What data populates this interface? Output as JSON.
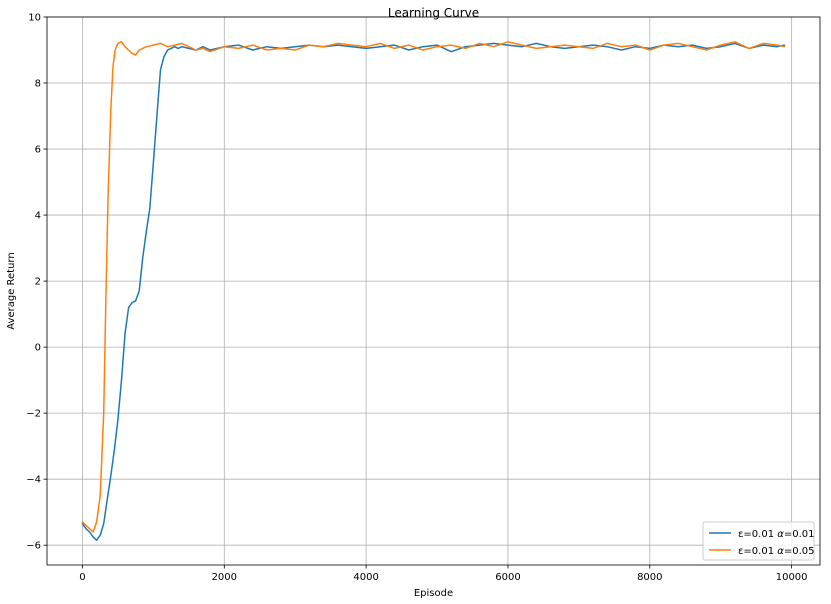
{
  "chart_data": {
    "type": "line",
    "title": "Learning Curve",
    "xlabel": "Episode",
    "ylabel": "Average Return",
    "xlim": [
      -500,
      10400
    ],
    "ylim": [
      -6.6,
      10.0
    ],
    "xticks": [
      0,
      2000,
      4000,
      6000,
      8000,
      10000
    ],
    "xtick_labels": [
      "0",
      "2000",
      "4000",
      "6000",
      "8000",
      "10000"
    ],
    "yticks": [
      -6,
      -4,
      -2,
      0,
      2,
      4,
      6,
      8,
      10
    ],
    "ytick_labels": [
      "−6",
      "−4",
      "−2",
      "0",
      "2",
      "4",
      "6",
      "8",
      "10"
    ],
    "grid": true,
    "legend_position": "lower-right",
    "series": [
      {
        "name": "ε=0.01 α=0.01",
        "legend_label": {
          "pre": "ε=0.01 ",
          "alpha": "α",
          "post": "=0.01"
        },
        "color": "#1f77b4",
        "x": [
          0,
          50,
          100,
          150,
          200,
          250,
          300,
          350,
          400,
          450,
          500,
          550,
          600,
          650,
          700,
          750,
          800,
          850,
          900,
          950,
          1000,
          1050,
          1100,
          1150,
          1200,
          1250,
          1300,
          1350,
          1400,
          1500,
          1600,
          1700,
          1800,
          2000,
          2200,
          2400,
          2600,
          2800,
          3000,
          3200,
          3400,
          3600,
          3800,
          4000,
          4200,
          4400,
          4600,
          4800,
          5000,
          5200,
          5400,
          5600,
          5800,
          6000,
          6200,
          6400,
          6600,
          6800,
          7000,
          7200,
          7400,
          7600,
          7800,
          8000,
          8200,
          8400,
          8600,
          8800,
          9000,
          9200,
          9400,
          9600,
          9800,
          9900
        ],
        "y": [
          -5.35,
          -5.5,
          -5.6,
          -5.75,
          -5.85,
          -5.7,
          -5.35,
          -4.6,
          -3.9,
          -3.1,
          -2.2,
          -1.0,
          0.4,
          1.2,
          1.35,
          1.4,
          1.7,
          2.7,
          3.5,
          4.2,
          5.6,
          7.0,
          8.4,
          8.8,
          9.0,
          9.05,
          9.1,
          9.05,
          9.1,
          9.05,
          9.0,
          9.1,
          9.0,
          9.1,
          9.15,
          9.0,
          9.1,
          9.05,
          9.1,
          9.15,
          9.1,
          9.15,
          9.1,
          9.05,
          9.1,
          9.15,
          9.0,
          9.1,
          9.15,
          8.95,
          9.1,
          9.15,
          9.2,
          9.15,
          9.1,
          9.2,
          9.1,
          9.05,
          9.1,
          9.15,
          9.1,
          9.0,
          9.1,
          9.05,
          9.15,
          9.1,
          9.15,
          9.05,
          9.1,
          9.2,
          9.05,
          9.15,
          9.1,
          9.15
        ]
      },
      {
        "name": "ε=0.01 α=0.05",
        "legend_label": {
          "pre": "ε=0.01 ",
          "alpha": "α",
          "post": "=0.05"
        },
        "color": "#ff7f0e",
        "x": [
          0,
          50,
          100,
          150,
          200,
          250,
          300,
          330,
          360,
          400,
          430,
          460,
          500,
          550,
          600,
          650,
          700,
          750,
          800,
          900,
          1000,
          1100,
          1200,
          1300,
          1400,
          1500,
          1600,
          1700,
          1800,
          2000,
          2200,
          2400,
          2600,
          2800,
          3000,
          3200,
          3400,
          3600,
          3800,
          4000,
          4200,
          4400,
          4600,
          4800,
          5000,
          5200,
          5400,
          5600,
          5800,
          6000,
          6200,
          6400,
          6600,
          6800,
          7000,
          7200,
          7400,
          7600,
          7800,
          8000,
          8200,
          8400,
          8600,
          8800,
          9000,
          9200,
          9400,
          9600,
          9800,
          9900
        ],
        "y": [
          -5.3,
          -5.4,
          -5.5,
          -5.6,
          -5.3,
          -4.5,
          -2.0,
          1.5,
          4.5,
          7.2,
          8.5,
          9.0,
          9.2,
          9.25,
          9.1,
          9.0,
          8.9,
          8.85,
          9.0,
          9.1,
          9.15,
          9.2,
          9.1,
          9.15,
          9.2,
          9.1,
          9.0,
          9.05,
          8.95,
          9.1,
          9.05,
          9.15,
          9.0,
          9.05,
          9.0,
          9.15,
          9.1,
          9.2,
          9.15,
          9.1,
          9.2,
          9.05,
          9.15,
          9.0,
          9.1,
          9.15,
          9.05,
          9.2,
          9.1,
          9.25,
          9.15,
          9.05,
          9.1,
          9.15,
          9.1,
          9.05,
          9.2,
          9.1,
          9.15,
          9.0,
          9.15,
          9.2,
          9.1,
          9.0,
          9.15,
          9.25,
          9.05,
          9.2,
          9.15,
          9.1
        ]
      }
    ]
  }
}
